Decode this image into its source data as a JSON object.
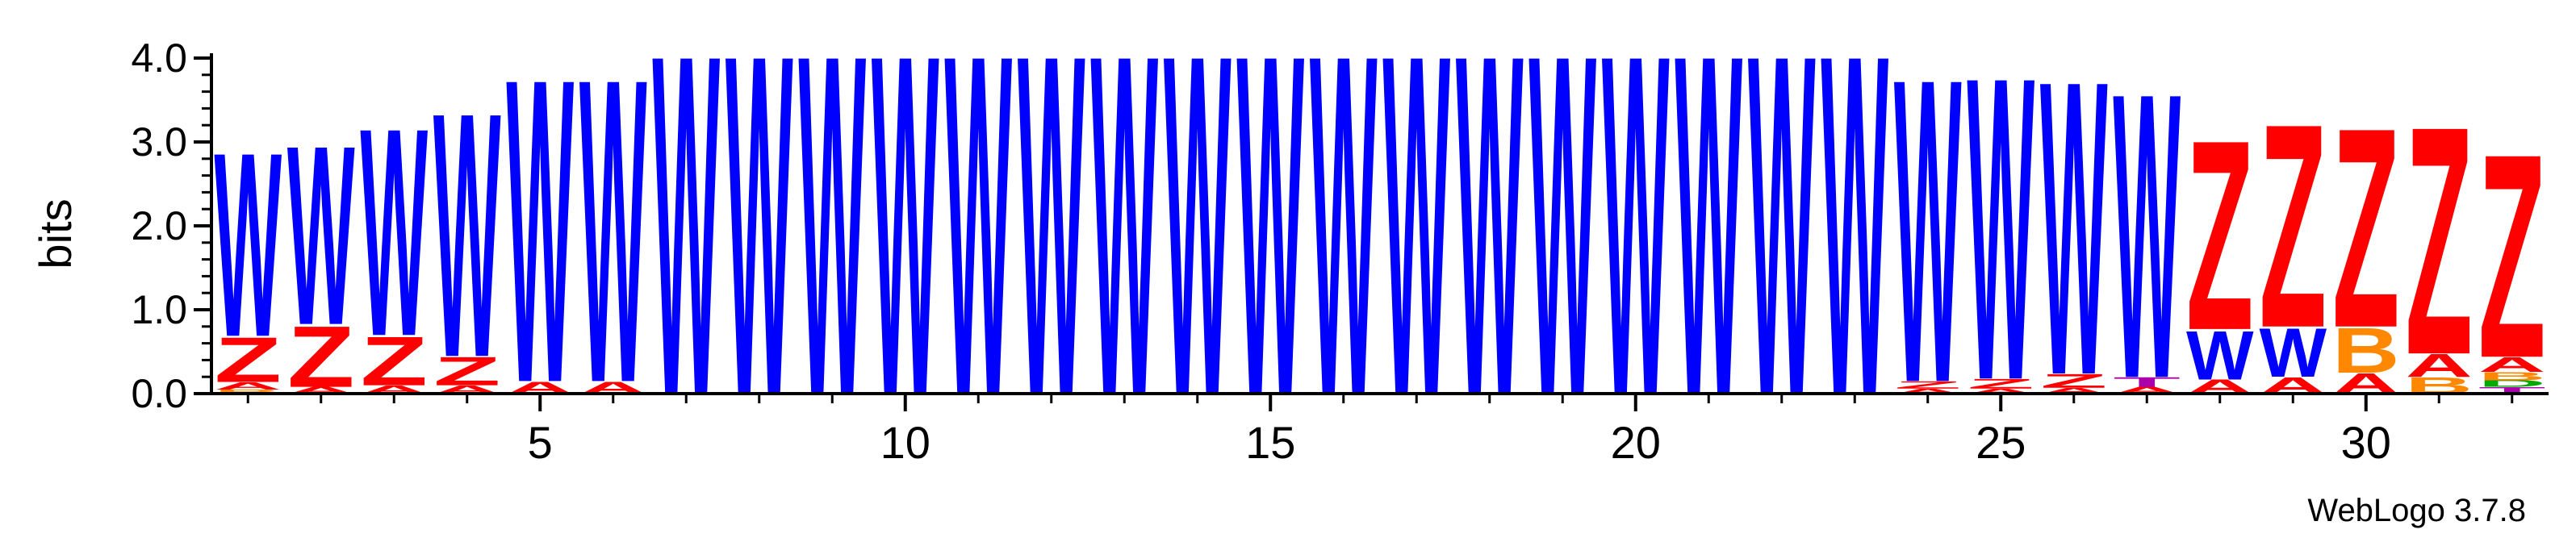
{
  "chart_data": {
    "type": "sequence-logo",
    "ylabel": "bits",
    "credit": "WebLogo 3.7.8",
    "ylim": [
      0,
      4.18
    ],
    "xlim": [
      0.5,
      32.5
    ],
    "yticks": [
      "0.0",
      "1.0",
      "2.0",
      "3.0",
      "4.0"
    ],
    "ytick_values": [
      0,
      1,
      2,
      3,
      4
    ],
    "xticks": [
      5,
      10,
      15,
      20,
      25,
      30
    ],
    "xtick_labels": [
      "5",
      "10",
      "15",
      "20",
      "25",
      "30"
    ],
    "colors": {
      "W": "#0000ff",
      "Z": "#ff0000",
      "A": "#ff0000",
      "B": "#ff8800",
      "T": "#aa00aa",
      "D": "#00aa00"
    },
    "positions": [
      {
        "pos": 1,
        "stack": [
          {
            "letter": "B",
            "bits": 0.05
          },
          {
            "letter": "A",
            "bits": 0.09
          },
          {
            "letter": "Z",
            "bits": 0.55
          },
          {
            "letter": "W",
            "bits": 2.26
          }
        ]
      },
      {
        "pos": 2,
        "stack": [
          {
            "letter": "A",
            "bits": 0.08
          },
          {
            "letter": "Z",
            "bits": 0.75
          },
          {
            "letter": "W",
            "bits": 2.2
          }
        ]
      },
      {
        "pos": 3,
        "stack": [
          {
            "letter": "A",
            "bits": 0.1
          },
          {
            "letter": "Z",
            "bits": 0.6
          },
          {
            "letter": "W",
            "bits": 2.55
          }
        ]
      },
      {
        "pos": 4,
        "stack": [
          {
            "letter": "A",
            "bits": 0.1
          },
          {
            "letter": "Z",
            "bits": 0.35
          },
          {
            "letter": "W",
            "bits": 3.0
          }
        ]
      },
      {
        "pos": 5,
        "stack": [
          {
            "letter": "A",
            "bits": 0.15
          },
          {
            "letter": "W",
            "bits": 3.73
          }
        ]
      },
      {
        "pos": 6,
        "stack": [
          {
            "letter": "A",
            "bits": 0.15
          },
          {
            "letter": "W",
            "bits": 3.73
          }
        ]
      },
      {
        "pos": 7,
        "stack": [
          {
            "letter": "W",
            "bits": 4.18
          }
        ]
      },
      {
        "pos": 8,
        "stack": [
          {
            "letter": "W",
            "bits": 4.18
          }
        ]
      },
      {
        "pos": 9,
        "stack": [
          {
            "letter": "W",
            "bits": 4.18
          }
        ]
      },
      {
        "pos": 10,
        "stack": [
          {
            "letter": "W",
            "bits": 4.18
          }
        ]
      },
      {
        "pos": 11,
        "stack": [
          {
            "letter": "W",
            "bits": 4.18
          }
        ]
      },
      {
        "pos": 12,
        "stack": [
          {
            "letter": "W",
            "bits": 4.18
          }
        ]
      },
      {
        "pos": 13,
        "stack": [
          {
            "letter": "W",
            "bits": 4.18
          }
        ]
      },
      {
        "pos": 14,
        "stack": [
          {
            "letter": "W",
            "bits": 4.18
          }
        ]
      },
      {
        "pos": 15,
        "stack": [
          {
            "letter": "W",
            "bits": 4.18
          }
        ]
      },
      {
        "pos": 16,
        "stack": [
          {
            "letter": "W",
            "bits": 4.18
          }
        ]
      },
      {
        "pos": 17,
        "stack": [
          {
            "letter": "W",
            "bits": 4.18
          }
        ]
      },
      {
        "pos": 18,
        "stack": [
          {
            "letter": "W",
            "bits": 4.18
          }
        ]
      },
      {
        "pos": 19,
        "stack": [
          {
            "letter": "W",
            "bits": 4.18
          }
        ]
      },
      {
        "pos": 20,
        "stack": [
          {
            "letter": "W",
            "bits": 4.18
          }
        ]
      },
      {
        "pos": 21,
        "stack": [
          {
            "letter": "W",
            "bits": 4.18
          }
        ]
      },
      {
        "pos": 22,
        "stack": [
          {
            "letter": "W",
            "bits": 4.18
          }
        ]
      },
      {
        "pos": 23,
        "stack": [
          {
            "letter": "W",
            "bits": 4.18
          }
        ]
      },
      {
        "pos": 24,
        "stack": [
          {
            "letter": "A",
            "bits": 0.06
          },
          {
            "letter": "Z",
            "bits": 0.09
          },
          {
            "letter": "W",
            "bits": 3.73
          }
        ]
      },
      {
        "pos": 25,
        "stack": [
          {
            "letter": "A",
            "bits": 0.06
          },
          {
            "letter": "Z",
            "bits": 0.12
          },
          {
            "letter": "W",
            "bits": 3.72
          }
        ]
      },
      {
        "pos": 26,
        "stack": [
          {
            "letter": "A",
            "bits": 0.07
          },
          {
            "letter": "Z",
            "bits": 0.17
          },
          {
            "letter": "W",
            "bits": 3.61
          }
        ]
      },
      {
        "pos": 27,
        "stack": [
          {
            "letter": "A",
            "bits": 0.08
          },
          {
            "letter": "T",
            "bits": 0.12
          },
          {
            "letter": "W",
            "bits": 3.5
          }
        ]
      },
      {
        "pos": 28,
        "stack": [
          {
            "letter": "A",
            "bits": 0.17
          },
          {
            "letter": "W",
            "bits": 0.6
          },
          {
            "letter": "Z",
            "bits": 2.33
          }
        ]
      },
      {
        "pos": 29,
        "stack": [
          {
            "letter": "A",
            "bits": 0.2
          },
          {
            "letter": "W",
            "bits": 0.6
          },
          {
            "letter": "Z",
            "bits": 2.5
          }
        ]
      },
      {
        "pos": 30,
        "stack": [
          {
            "letter": "A",
            "bits": 0.25
          },
          {
            "letter": "B",
            "bits": 0.55
          },
          {
            "letter": "Z",
            "bits": 2.45
          }
        ]
      },
      {
        "pos": 31,
        "stack": [
          {
            "letter": "B",
            "bits": 0.2
          },
          {
            "letter": "A",
            "bits": 0.28
          },
          {
            "letter": "Z",
            "bits": 2.8
          }
        ]
      },
      {
        "pos": 32,
        "stack": [
          {
            "letter": "T",
            "bits": 0.08
          },
          {
            "letter": "D",
            "bits": 0.08
          },
          {
            "letter": "B",
            "bits": 0.1
          },
          {
            "letter": "A",
            "bits": 0.18
          },
          {
            "letter": "Z",
            "bits": 2.5
          }
        ]
      }
    ]
  }
}
